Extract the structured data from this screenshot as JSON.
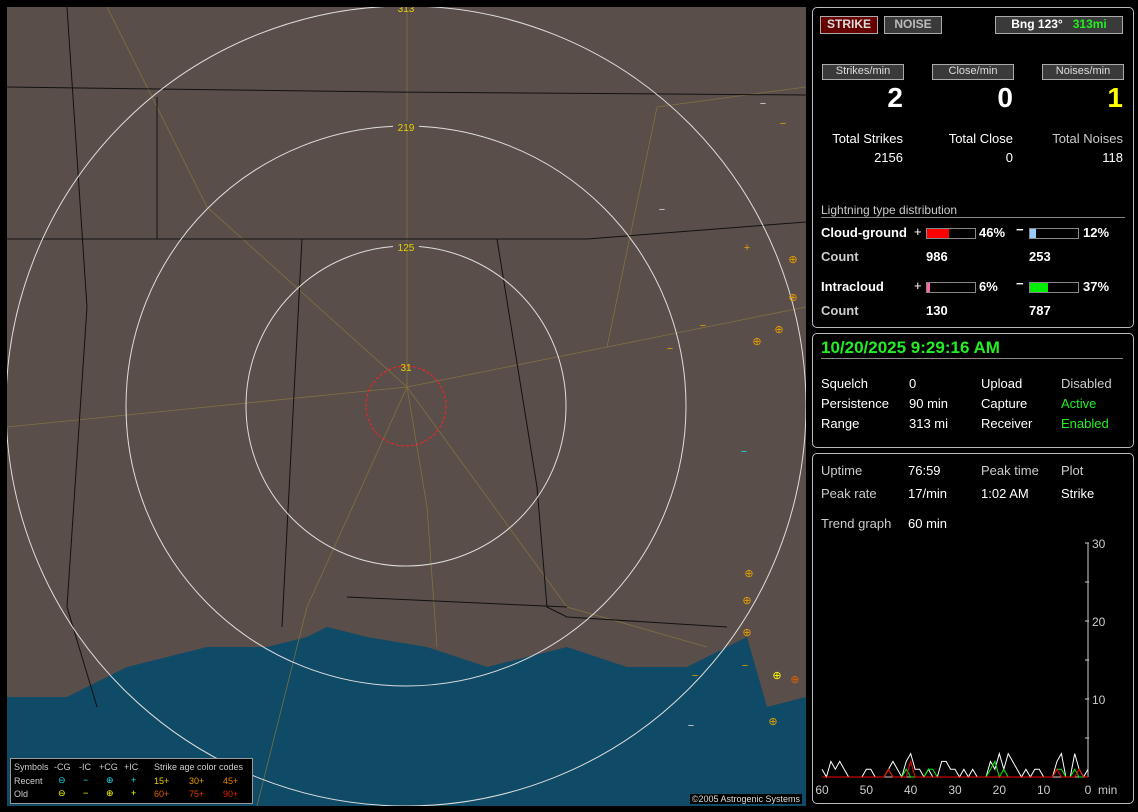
{
  "map": {
    "ring_labels": [
      "313",
      "219",
      "125",
      "31"
    ],
    "copyright": "©2005 Astrogenic Systems"
  },
  "legend": {
    "title": "Symbols",
    "cols": [
      "-CG",
      "-IC",
      "+CG",
      "+IC"
    ],
    "age_title": "Strike age color codes",
    "rows": [
      {
        "label": "Recent",
        "color": "#22ddee",
        "ages": [
          "15+",
          "30+",
          "45+"
        ],
        "age_colors": [
          "#e8d000",
          "#e8a000",
          "#e88000"
        ]
      },
      {
        "label": "Old",
        "color": "#ffff00",
        "ages": [
          "60+",
          "75+",
          "90+"
        ],
        "age_colors": [
          "#e06000",
          "#e04000",
          "#e02000"
        ]
      }
    ],
    "symbols": [
      "⊖",
      "−",
      "⊕",
      "+"
    ]
  },
  "top": {
    "strike_label": "STRIKE",
    "noise_label": "NOISE",
    "bearing": "Bng 123°",
    "range": "313mi"
  },
  "rates": [
    {
      "label": "Strikes/min",
      "value": "2",
      "total_label": "Total Strikes",
      "total": "2156",
      "color": "#ffffff"
    },
    {
      "label": "Close/min",
      "value": "0",
      "total_label": "Total Close",
      "total": "0",
      "color": "#ffffff"
    },
    {
      "label": "Noises/min",
      "value": "1",
      "total_label": "Total Noises",
      "total": "118",
      "color": "#ffff00"
    }
  ],
  "distribution": {
    "title": "Lightning type distribution",
    "cg_label": "Cloud-ground",
    "ic_label": "Intracloud",
    "count_label": "Count",
    "cg_pos": {
      "pct": 46,
      "text": "46%",
      "count": "986",
      "color": "#ff0000"
    },
    "cg_neg": {
      "pct": 12,
      "text": "12%",
      "count": "253",
      "color": "#99ccff"
    },
    "ic_pos": {
      "pct": 6,
      "text": "6%",
      "count": "130",
      "color": "#ff66aa"
    },
    "ic_neg": {
      "pct": 37,
      "text": "37%",
      "count": "787",
      "color": "#00ee00"
    }
  },
  "status": {
    "datetime": "10/20/2025 9:29:16 AM",
    "squelch_label": "Squelch",
    "squelch": "0",
    "persistence_label": "Persistence",
    "persistence": "90 min",
    "range_label": "Range",
    "range": "313 mi",
    "upload_label": "Upload",
    "upload": "Disabled",
    "capture_label": "Capture",
    "capture": "Active",
    "receiver_label": "Receiver",
    "receiver": "Enabled"
  },
  "stats": {
    "uptime_label": "Uptime",
    "uptime": "76:59",
    "peak_time_label": "Peak time",
    "peak_time": "1:02 AM",
    "plot_label": "Plot",
    "peak_rate_label": "Peak rate",
    "peak_rate": "17/min",
    "plot": "Strike",
    "trend_label": "Trend graph",
    "trend": "60 min"
  },
  "chart_data": {
    "type": "line",
    "x_ticks": [
      "60",
      "50",
      "40",
      "30",
      "20",
      "10",
      "0"
    ],
    "x_unit": "min",
    "y_ticks": [
      "10",
      "20",
      "30"
    ],
    "ylim": [
      0,
      30
    ],
    "xlim": [
      60,
      0
    ],
    "series": [
      {
        "color": "#ffffff",
        "values": [
          1,
          0,
          2,
          1,
          2,
          1,
          0,
          0,
          0,
          0,
          1,
          1,
          0,
          0,
          0,
          1,
          2,
          1,
          0,
          2,
          3,
          1,
          1,
          0,
          1,
          0,
          0,
          2,
          2,
          1,
          1,
          0,
          1,
          0,
          1,
          0,
          0,
          0,
          2,
          1,
          3,
          1,
          3,
          2,
          1,
          0,
          1,
          0,
          1,
          1,
          0,
          0,
          0,
          2,
          3,
          0,
          0,
          3,
          1,
          0,
          1
        ]
      },
      {
        "color": "#00ee00",
        "values": [
          0,
          0,
          0,
          0,
          0,
          0,
          0,
          0,
          0,
          0,
          0,
          0,
          0,
          0,
          0,
          1,
          0,
          0,
          0,
          1,
          0,
          0,
          0,
          0,
          1,
          1,
          0,
          0,
          0,
          0,
          0,
          0,
          0,
          0,
          0,
          0,
          0,
          0,
          1,
          2,
          0,
          1,
          0,
          0,
          0,
          0,
          0,
          0,
          0,
          0,
          0,
          0,
          0,
          1,
          1,
          0,
          0,
          1,
          0,
          0,
          0
        ]
      },
      {
        "color": "#ff0000",
        "values": [
          0,
          0,
          0,
          0,
          0,
          0,
          0,
          0,
          0,
          0,
          0,
          0,
          0,
          0,
          0,
          1,
          0,
          0,
          0,
          0,
          2,
          0,
          0,
          0,
          0,
          0,
          0,
          0,
          0,
          0,
          0,
          0,
          0,
          0,
          0,
          0,
          0,
          0,
          0,
          0,
          0,
          0,
          0,
          0,
          0,
          0,
          0,
          0,
          0,
          0,
          0,
          0,
          0,
          1,
          0,
          0,
          0,
          0,
          1,
          0,
          0
        ]
      }
    ]
  }
}
